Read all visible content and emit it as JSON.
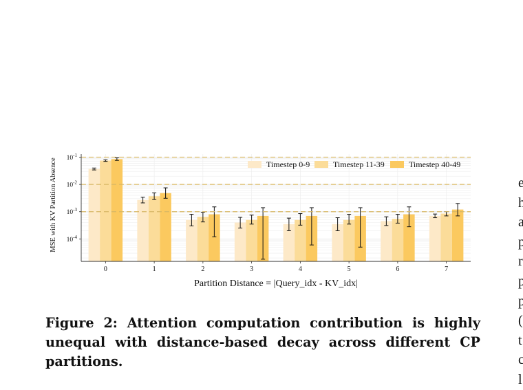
{
  "caption": "Figure 2: Attention computation contribution is highly unequal with distance-based decay across different CP partitions.",
  "right_column_fragments": [
    "e",
    "h",
    "a",
    "p",
    "r",
    "p",
    "p",
    "(:",
    "t",
    "c",
    "l"
  ],
  "chart_data": {
    "type": "bar",
    "xlabel": "Partition Distance = |Query_idx - KV_idx|",
    "ylabel": "MSE with KV Partition Absence",
    "yscale": "log",
    "ylim": [
      1.5e-05,
      0.13
    ],
    "yticks": [
      0.0001,
      0.001,
      0.01,
      0.1
    ],
    "ytick_labels": [
      {
        "base": "10",
        "exp": "-4"
      },
      {
        "base": "10",
        "exp": "-3"
      },
      {
        "base": "10",
        "exp": "-2"
      },
      {
        "base": "10",
        "exp": "-1"
      }
    ],
    "categories": [
      "0",
      "1",
      "2",
      "3",
      "4",
      "5",
      "6",
      "7"
    ],
    "reference_lines": [
      0.1,
      0.01,
      0.001
    ],
    "grid": true,
    "legend_position": "top-right",
    "series": [
      {
        "name": "Timestep 0-9",
        "color": "#fde9c8",
        "values": [
          0.037,
          0.0027,
          0.0005,
          0.0004,
          0.00035,
          0.00035,
          0.00045,
          0.0007
        ],
        "err_low": [
          0.034,
          0.0021,
          0.0003,
          0.00025,
          0.0002,
          0.0002,
          0.00031,
          0.0006
        ],
        "err_high": [
          0.04,
          0.0034,
          0.0008,
          0.00062,
          0.00058,
          0.0006,
          0.00065,
          0.00082
        ]
      },
      {
        "name": "Timestep 11-39",
        "color": "#fbdc99",
        "values": [
          0.075,
          0.0037,
          0.00065,
          0.0005,
          0.0005,
          0.0005,
          0.00055,
          0.00085
        ],
        "err_low": [
          0.07,
          0.0028,
          0.00042,
          0.00035,
          0.00032,
          0.00035,
          0.00038,
          0.0007
        ],
        "err_high": [
          0.08,
          0.0049,
          0.00095,
          0.00075,
          0.00085,
          0.0008,
          0.0008,
          0.001
        ]
      },
      {
        "name": "Timestep 40-49",
        "color": "#fbc95f",
        "values": [
          0.085,
          0.0048,
          0.0008,
          0.0007,
          0.0007,
          0.0007,
          0.0008,
          0.0012
        ],
        "err_low": [
          0.076,
          0.0031,
          0.00012,
          1.8e-05,
          6e-05,
          5e-05,
          0.00028,
          0.0007
        ],
        "err_high": [
          0.095,
          0.0075,
          0.0015,
          0.0014,
          0.0014,
          0.0014,
          0.0015,
          0.002
        ]
      }
    ]
  }
}
